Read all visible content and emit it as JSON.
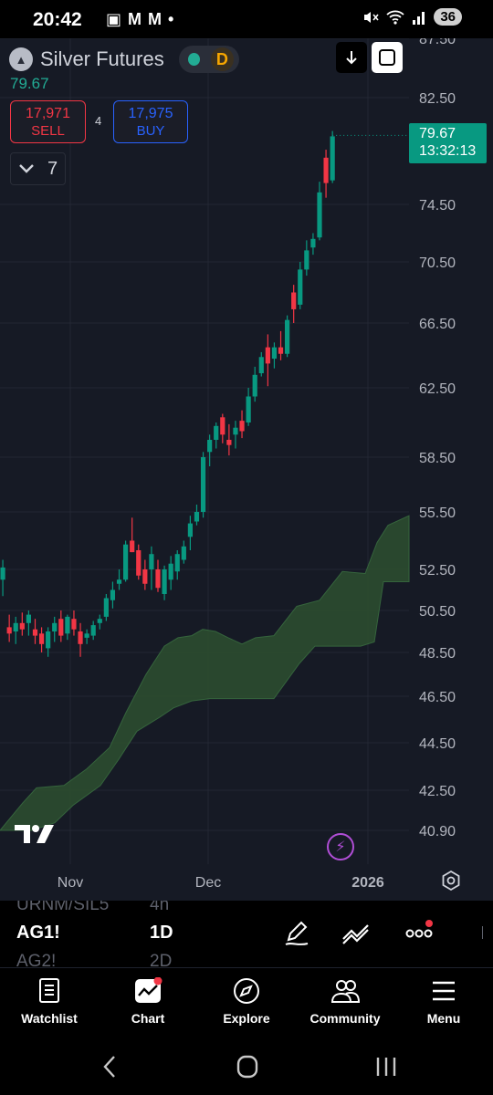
{
  "status_bar": {
    "time": "20:42",
    "left_icons": "▣ M M •",
    "battery": "36"
  },
  "chart_header": {
    "symbol_name": "Silver Futures",
    "interval_badge": "D",
    "last_price": "79.67",
    "sell_price": "17,971",
    "sell_label": "SELL",
    "spread": "4",
    "buy_price": "17,975",
    "buy_label": "BUY",
    "indicators_count": "7",
    "price_tag_price": "79.67",
    "price_tag_countdown": "13:32:13"
  },
  "chart_data": {
    "type": "candlestick",
    "y_ticks": [
      "87.50",
      "82.50",
      "79.67",
      "74.50",
      "70.50",
      "66.50",
      "62.50",
      "58.50",
      "55.50",
      "52.50",
      "50.50",
      "48.50",
      "46.50",
      "44.50",
      "42.50",
      "40.90"
    ],
    "x_ticks": [
      "Nov",
      "Dec",
      "2026"
    ],
    "ohlc": [
      [
        52.2,
        52.8,
        51.0,
        51.3
      ],
      [
        52.0,
        53.0,
        51.2,
        52.6
      ],
      [
        49.7,
        50.3,
        49.0,
        49.4
      ],
      [
        49.5,
        50.2,
        48.9,
        49.9
      ],
      [
        49.9,
        50.4,
        49.3,
        49.6
      ],
      [
        49.9,
        50.5,
        49.3,
        50.3
      ],
      [
        49.6,
        50.1,
        48.9,
        49.3
      ],
      [
        49.4,
        49.7,
        48.5,
        48.9
      ],
      [
        48.7,
        49.7,
        48.3,
        49.5
      ],
      [
        49.5,
        50.2,
        49.0,
        49.9
      ],
      [
        50.1,
        50.5,
        49.0,
        49.3
      ],
      [
        49.4,
        50.3,
        49.1,
        50.2
      ],
      [
        50.1,
        50.5,
        49.3,
        49.6
      ],
      [
        49.5,
        49.9,
        48.3,
        48.9
      ],
      [
        49.2,
        49.6,
        48.9,
        49.4
      ],
      [
        49.3,
        50.0,
        49.1,
        49.8
      ],
      [
        49.9,
        50.3,
        49.6,
        50.1
      ],
      [
        50.2,
        51.3,
        50.0,
        51.1
      ],
      [
        51.0,
        51.9,
        50.6,
        51.5
      ],
      [
        51.8,
        52.5,
        51.5,
        52.0
      ],
      [
        52.0,
        54.0,
        51.9,
        53.8
      ],
      [
        54.0,
        55.2,
        53.4,
        53.4
      ],
      [
        53.5,
        53.8,
        52.0,
        52.2
      ],
      [
        52.5,
        53.0,
        51.5,
        51.8
      ],
      [
        52.5,
        53.7,
        51.5,
        53.3
      ],
      [
        52.5,
        53.0,
        51.4,
        51.6
      ],
      [
        51.3,
        52.7,
        51.0,
        52.5
      ],
      [
        52.0,
        53.2,
        51.5,
        52.8
      ],
      [
        52.4,
        53.5,
        52.0,
        53.3
      ],
      [
        53.0,
        54.0,
        52.8,
        53.7
      ],
      [
        54.2,
        55.3,
        53.5,
        54.9
      ],
      [
        55.0,
        55.9,
        54.8,
        55.5
      ],
      [
        55.5,
        58.8,
        55.2,
        58.5
      ],
      [
        58.8,
        59.8,
        58.0,
        59.5
      ],
      [
        59.5,
        60.5,
        59.0,
        60.3
      ],
      [
        60.8,
        61.0,
        59.3,
        59.8
      ],
      [
        59.5,
        60.4,
        58.6,
        59.2
      ],
      [
        59.8,
        60.6,
        59.0,
        60.2
      ],
      [
        60.6,
        61.2,
        59.6,
        60.0
      ],
      [
        60.5,
        62.5,
        60.3,
        62.0
      ],
      [
        62.0,
        63.8,
        61.7,
        63.3
      ],
      [
        63.4,
        64.7,
        63.2,
        64.4
      ],
      [
        65.0,
        65.8,
        62.6,
        64.0
      ],
      [
        64.3,
        65.3,
        63.7,
        65.0
      ],
      [
        65.0,
        66.0,
        64.2,
        64.6
      ],
      [
        64.6,
        67.0,
        64.4,
        66.7
      ],
      [
        68.5,
        69.0,
        66.5,
        67.4
      ],
      [
        67.7,
        70.5,
        67.4,
        70.0
      ],
      [
        70.0,
        72.0,
        69.6,
        71.3
      ],
      [
        71.5,
        72.5,
        71.0,
        72.1
      ],
      [
        72.2,
        76.2,
        72.0,
        75.4
      ],
      [
        78.0,
        78.6,
        75.0,
        76.1
      ],
      [
        76.3,
        80.0,
        76.1,
        79.6
      ]
    ],
    "last_price": 79.67,
    "cloud": "Ichimoku-style green cloud below price"
  },
  "toolbar": {
    "symbol_above": "URNM/SIL5",
    "symbol": "AG1!",
    "symbol_below": "AG2!",
    "interval_above": "4h",
    "interval": "1D",
    "interval_below": "2D"
  },
  "bottom_nav": {
    "items": [
      {
        "label": "Watchlist",
        "icon": "watchlist-icon"
      },
      {
        "label": "Chart",
        "icon": "chart-icon"
      },
      {
        "label": "Explore",
        "icon": "compass-icon"
      },
      {
        "label": "Community",
        "icon": "community-icon"
      },
      {
        "label": "Menu",
        "icon": "menu-icon"
      }
    ]
  },
  "colors": {
    "up": "#089981",
    "down": "#f23645",
    "cloud": "#2b4a2f",
    "background": "#161a25"
  }
}
